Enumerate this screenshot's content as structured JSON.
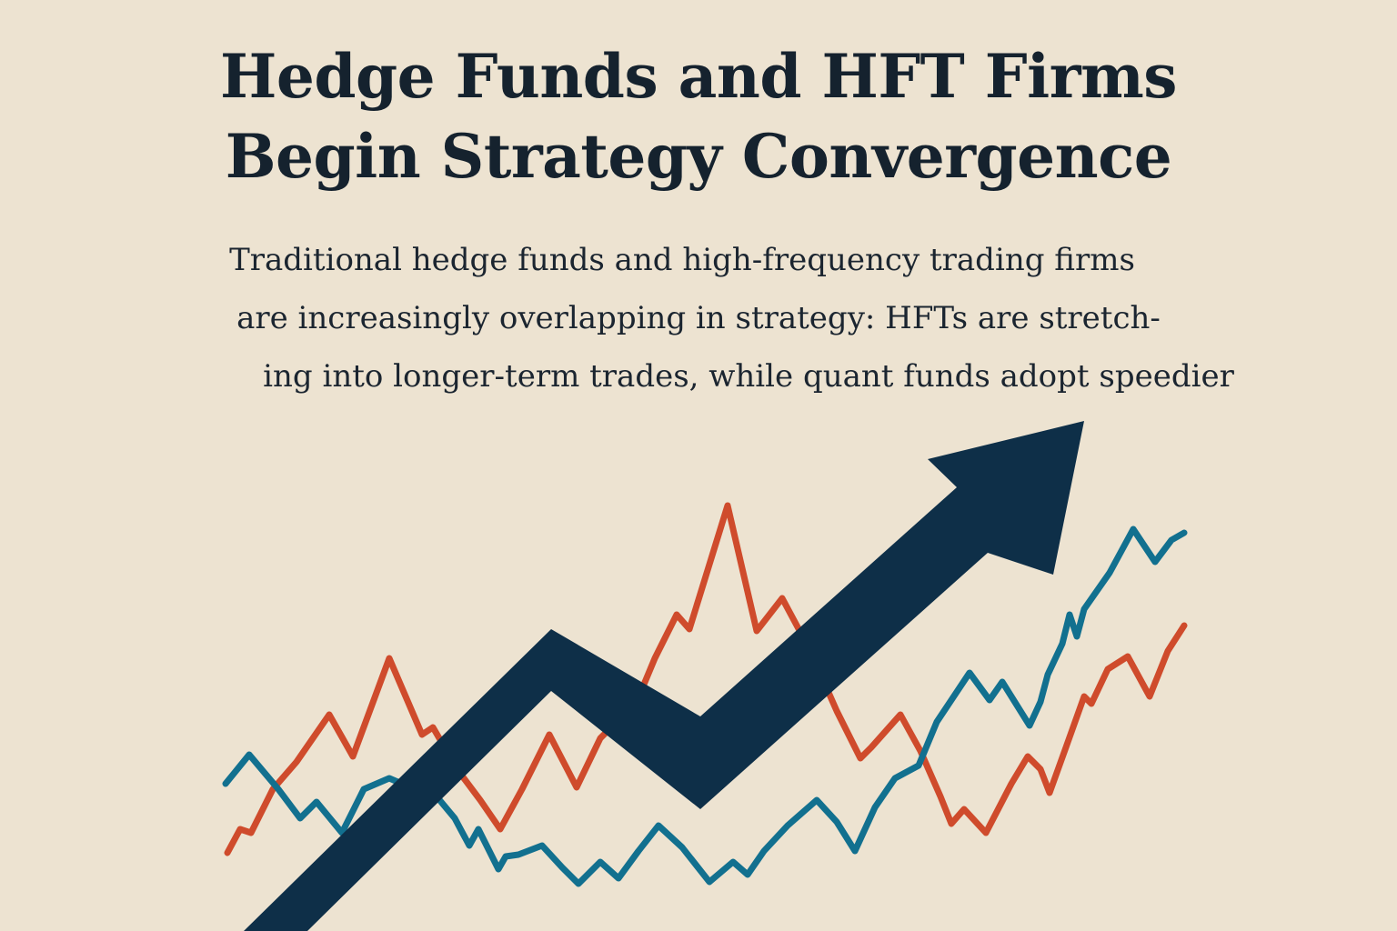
{
  "headline": {
    "line1": "Hedge Funds and HFT Firms",
    "line2": "Begin Strategy Convergence"
  },
  "dek": {
    "line1": "Traditional hedge funds and high-frequency trading firms",
    "line2": "are increasingly overlapping in strategy: HFTs are stretch-",
    "line3": "ing into longer-term trades, while quant funds adopt speedier"
  },
  "colors": {
    "background": "#ede3d1",
    "text": "#15222e",
    "arrow": "#0e2f48",
    "red_line": "#cf4b2c",
    "blue_line": "#12708f"
  },
  "illustration": {
    "arrow_icon": "trend-up-arrow-icon",
    "lines": [
      "red-zigzag-line",
      "blue-zigzag-line"
    ]
  }
}
